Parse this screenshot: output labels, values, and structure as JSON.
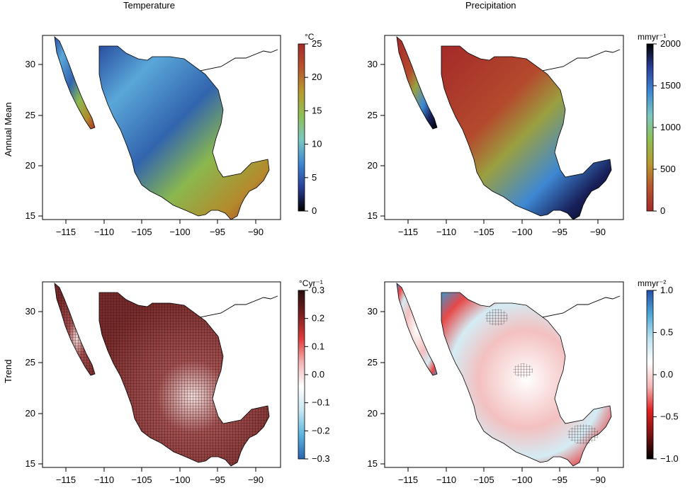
{
  "columns": {
    "temperature": "Temperature",
    "precipitation": "Precipitation"
  },
  "rows": {
    "annual_mean": "Annual Mean",
    "trend": "Trend"
  },
  "x_ticks": [
    "−115",
    "−110",
    "−105",
    "−100",
    "−95",
    "−90"
  ],
  "y_ticks": [
    "15",
    "20",
    "25",
    "30"
  ],
  "legends": {
    "temp_mean": {
      "unit": "°C",
      "ticks": [
        "25",
        "20",
        "15",
        "10",
        "5",
        "0"
      ],
      "colors": [
        "#000000",
        "#2a3f9a",
        "#3e88d3",
        "#7cc7c0",
        "#8fbf55",
        "#b79a2f",
        "#b8542e",
        "#a42a2a"
      ]
    },
    "precip_mean": {
      "unit": "mmyr⁻¹",
      "ticks": [
        "2000",
        "1500",
        "1000",
        "500",
        "0"
      ],
      "colors": [
        "#a42a2a",
        "#b8542e",
        "#b79a2f",
        "#8fbf55",
        "#7cc7c0",
        "#3e88d3",
        "#2a3f9a",
        "#000000"
      ]
    },
    "temp_trend": {
      "unit": "°Cyr⁻¹",
      "ticks": [
        "0.3",
        "0.2",
        "0.1",
        "0.0",
        "−0.1",
        "−0.2",
        "−0.3"
      ],
      "colors": [
        "#2b62b0",
        "#5ab6e0",
        "#c6e7f2",
        "#ffffff",
        "#f4b4b4",
        "#e03a3a",
        "#7a1f1f",
        "#2a1010"
      ]
    },
    "precip_trend": {
      "unit": "mmyr⁻²",
      "ticks": [
        "1.0",
        "0.5",
        "0.0",
        "−0.5",
        "−1.0"
      ],
      "colors": [
        "#000000",
        "#7a1212",
        "#e02020",
        "#f4b4b4",
        "#ffffff",
        "#bfe3f0",
        "#4fa8d8",
        "#2550a8"
      ]
    }
  }
}
